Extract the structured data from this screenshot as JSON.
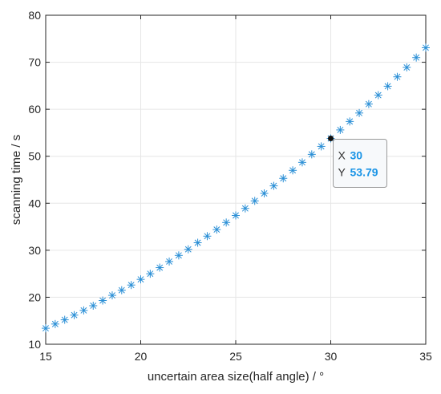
{
  "chart_data": {
    "type": "scatter",
    "title": "",
    "xlabel": "uncertain area size(half angle) / °",
    "ylabel": "scanning time / s",
    "xlim": [
      15,
      35
    ],
    "ylim": [
      10,
      80
    ],
    "xticks": [
      15,
      20,
      25,
      30,
      35
    ],
    "yticks": [
      10,
      20,
      30,
      40,
      50,
      60,
      70,
      80
    ],
    "grid": true,
    "marker": "asterisk",
    "series_color": "#2a8fd6",
    "x": [
      15,
      15.5,
      16,
      16.5,
      17,
      17.5,
      18,
      18.5,
      19,
      19.5,
      20,
      20.5,
      21,
      21.5,
      22,
      22.5,
      23,
      23.5,
      24,
      24.5,
      25,
      25.5,
      26,
      26.5,
      27,
      27.5,
      28,
      28.5,
      29,
      29.5,
      30,
      30.5,
      31,
      31.5,
      32,
      32.5,
      33,
      33.5,
      34,
      34.5,
      35
    ],
    "y": [
      13.4,
      14.3,
      15.2,
      16.2,
      17.2,
      18.2,
      19.3,
      20.4,
      21.5,
      22.6,
      23.8,
      25.0,
      26.3,
      27.6,
      28.9,
      30.2,
      31.6,
      33.0,
      34.4,
      35.9,
      37.4,
      38.9,
      40.5,
      42.1,
      43.7,
      45.3,
      47.0,
      48.7,
      50.4,
      52.1,
      53.79,
      55.6,
      57.4,
      59.2,
      61.1,
      63.0,
      64.9,
      66.9,
      68.9,
      71.0,
      73.1
    ],
    "datatip": {
      "x_key": "X",
      "y_key": "Y",
      "x": 30,
      "y": 53.79,
      "x_text": "30",
      "y_text": "53.79",
      "value_color": "#1a94e6"
    }
  }
}
